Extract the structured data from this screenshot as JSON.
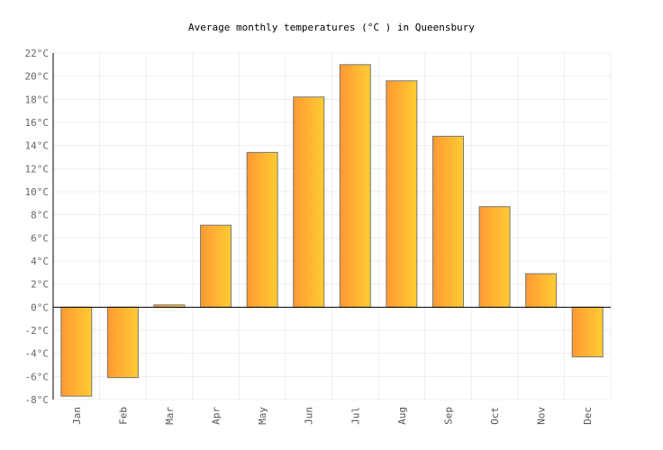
{
  "chart_data": {
    "type": "bar",
    "title": "Average monthly temperatures (°C ) in Queensbury",
    "categories": [
      "Jan",
      "Feb",
      "Mar",
      "Apr",
      "May",
      "Jun",
      "Jul",
      "Aug",
      "Sep",
      "Oct",
      "Nov",
      "Dec"
    ],
    "values": [
      -7.7,
      -6.1,
      0.2,
      7.1,
      13.4,
      18.2,
      21.0,
      19.6,
      14.8,
      8.7,
      2.9,
      -4.3
    ],
    "ylim": [
      -8,
      22
    ],
    "yticks": [
      -8,
      -6,
      -4,
      -2,
      0,
      2,
      4,
      6,
      8,
      10,
      12,
      14,
      16,
      18,
      20,
      22
    ],
    "ytick_suffix": "°C",
    "grid": true,
    "colors": {
      "bar_start": "#ff9933",
      "bar_end": "#ffcc33",
      "bar_stroke": "#777777",
      "grid": "#eeeeee"
    }
  }
}
